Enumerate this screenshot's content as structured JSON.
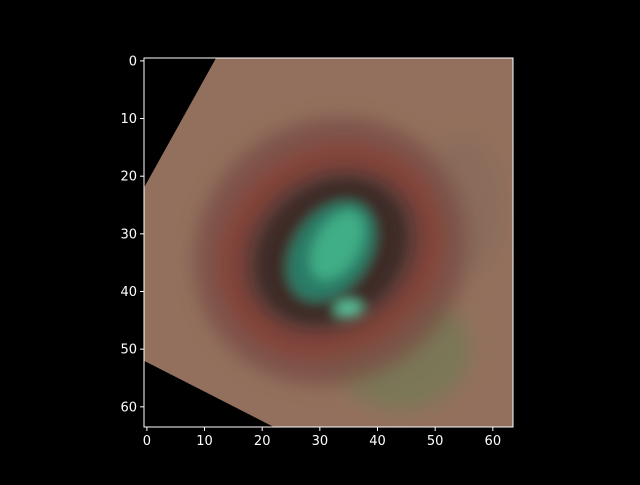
{
  "chart_data": {
    "type": "heatmap",
    "title": "",
    "xlabel": "",
    "ylabel": "",
    "image_size": [
      64,
      64
    ],
    "xlim": [
      -0.5,
      63.5
    ],
    "ylim": [
      63.5,
      -0.5
    ],
    "y_inverted": true,
    "x_ticks": [
      0,
      10,
      20,
      30,
      40,
      50,
      60
    ],
    "y_ticks": [
      0,
      10,
      20,
      30,
      40,
      50,
      60
    ],
    "x_tick_labels": [
      "0",
      "10",
      "20",
      "30",
      "40",
      "50",
      "60"
    ],
    "y_tick_labels": [
      "0",
      "10",
      "20",
      "30",
      "40",
      "50",
      "60"
    ],
    "grid": false,
    "colors": {
      "figure_background": "#000000",
      "axes_edge": "#ffffff",
      "tick_label": "#ffffff",
      "center_teal": "#3fae86",
      "ring_dark": "#3e2c26",
      "ring_red": "#8a3e34",
      "outer_tan": "#93705d",
      "corner_black": "#000000"
    },
    "description_regions": [
      {
        "name": "center",
        "color": "#3fae86"
      },
      {
        "name": "inner-ring",
        "color": "#3e2c26"
      },
      {
        "name": "red-ring",
        "color": "#8a3e34"
      },
      {
        "name": "outer-band",
        "color": "#93705d"
      }
    ]
  }
}
